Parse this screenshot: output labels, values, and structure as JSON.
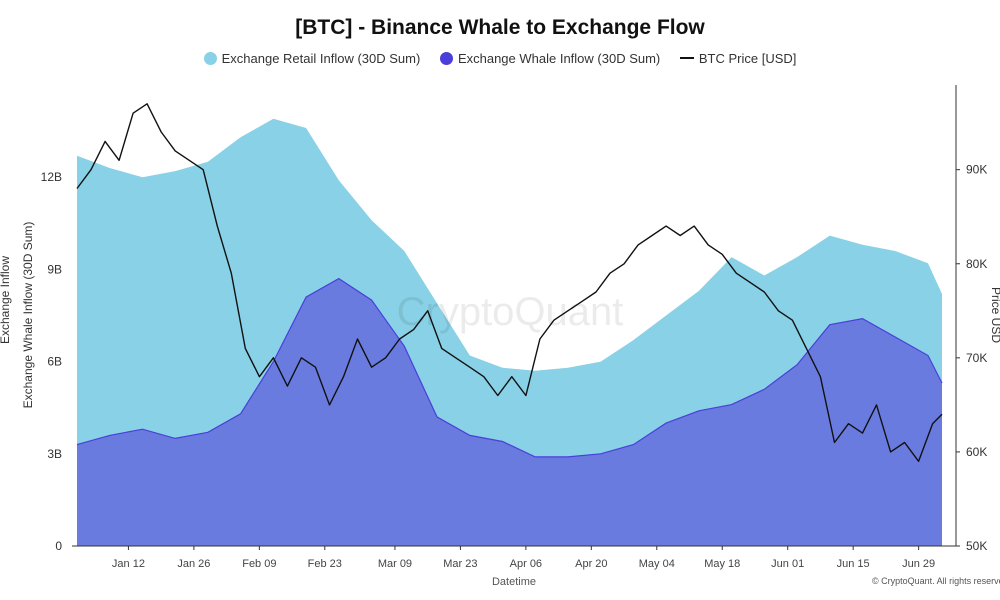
{
  "chart_data": {
    "type": "area",
    "title": "[BTC] - Binance Whale to Exchange Flow",
    "xlabel": "Datetime",
    "ylabel_left": "Exchange Whale Inflow (30D Sum)",
    "ylabel_left_outer": "Exchange Inflow",
    "ylabel_right": "Price USD",
    "watermark": "CryptoQuant",
    "copyright": "© CryptoQuant. All rights reserved",
    "x_ticks": [
      "Jan 12",
      "Jan 26",
      "Feb 09",
      "Feb 23",
      "Mar 09",
      "Mar 23",
      "Apr 06",
      "Apr 20",
      "May 04",
      "May 18",
      "Jun 01",
      "Jun 15",
      "Jun 29"
    ],
    "x_range": [
      "2024-01-01",
      "2024-07-04"
    ],
    "y_left_ticks": [
      "0",
      "3B",
      "6B",
      "9B",
      "12B"
    ],
    "y_left_range": [
      0,
      15
    ],
    "y_left_unit": "B",
    "y_right_ticks": [
      "50K",
      "60K",
      "70K",
      "80K",
      "90K"
    ],
    "y_right_range": [
      50,
      99
    ],
    "y_right_unit": "K USD",
    "legend_position": "top-center",
    "grid": false,
    "series": [
      {
        "name": "Exchange Retail Inflow (30D Sum)",
        "color": "#88d1e6",
        "axis": "left",
        "x": [
          "2024-01-01",
          "2024-01-08",
          "2024-01-15",
          "2024-01-22",
          "2024-01-29",
          "2024-02-05",
          "2024-02-12",
          "2024-02-19",
          "2024-02-26",
          "2024-03-04",
          "2024-03-11",
          "2024-03-18",
          "2024-03-25",
          "2024-04-01",
          "2024-04-08",
          "2024-04-15",
          "2024-04-22",
          "2024-04-29",
          "2024-05-06",
          "2024-05-13",
          "2024-05-20",
          "2024-05-27",
          "2024-06-03",
          "2024-06-10",
          "2024-06-17",
          "2024-06-24",
          "2024-07-01",
          "2024-07-04"
        ],
        "values": [
          12.7,
          12.3,
          12.0,
          12.2,
          12.5,
          13.3,
          13.9,
          13.6,
          11.9,
          10.6,
          9.6,
          7.9,
          6.2,
          5.8,
          5.7,
          5.8,
          6.0,
          6.7,
          7.5,
          8.3,
          9.4,
          8.8,
          9.4,
          10.1,
          9.8,
          9.6,
          9.2,
          8.2
        ]
      },
      {
        "name": "Exchange Whale Inflow (30D Sum)",
        "color": "#6a7bdf",
        "line_color": "#4a3fd9",
        "axis": "left",
        "x": [
          "2024-01-01",
          "2024-01-08",
          "2024-01-15",
          "2024-01-22",
          "2024-01-29",
          "2024-02-05",
          "2024-02-12",
          "2024-02-19",
          "2024-02-26",
          "2024-03-04",
          "2024-03-11",
          "2024-03-18",
          "2024-03-25",
          "2024-04-01",
          "2024-04-08",
          "2024-04-15",
          "2024-04-22",
          "2024-04-29",
          "2024-05-06",
          "2024-05-13",
          "2024-05-20",
          "2024-05-27",
          "2024-06-03",
          "2024-06-10",
          "2024-06-17",
          "2024-06-24",
          "2024-07-01",
          "2024-07-04"
        ],
        "values": [
          3.3,
          3.6,
          3.8,
          3.5,
          3.7,
          4.3,
          6.0,
          8.1,
          8.7,
          8.0,
          6.5,
          4.2,
          3.6,
          3.4,
          2.9,
          2.9,
          3.0,
          3.3,
          4.0,
          4.4,
          4.6,
          5.1,
          5.9,
          7.2,
          7.4,
          6.8,
          6.2,
          5.3
        ]
      },
      {
        "name": "BTC Price [USD]",
        "color": "#111111",
        "axis": "right",
        "x": [
          "2024-01-01",
          "2024-01-04",
          "2024-01-07",
          "2024-01-10",
          "2024-01-13",
          "2024-01-16",
          "2024-01-19",
          "2024-01-22",
          "2024-01-25",
          "2024-01-28",
          "2024-01-31",
          "2024-02-03",
          "2024-02-06",
          "2024-02-09",
          "2024-02-12",
          "2024-02-15",
          "2024-02-18",
          "2024-02-21",
          "2024-02-24",
          "2024-02-27",
          "2024-03-01",
          "2024-03-04",
          "2024-03-07",
          "2024-03-10",
          "2024-03-13",
          "2024-03-16",
          "2024-03-19",
          "2024-03-22",
          "2024-03-25",
          "2024-03-28",
          "2024-03-31",
          "2024-04-03",
          "2024-04-06",
          "2024-04-09",
          "2024-04-12",
          "2024-04-15",
          "2024-04-18",
          "2024-04-21",
          "2024-04-24",
          "2024-04-27",
          "2024-04-30",
          "2024-05-03",
          "2024-05-06",
          "2024-05-09",
          "2024-05-12",
          "2024-05-15",
          "2024-05-18",
          "2024-05-21",
          "2024-05-24",
          "2024-05-27",
          "2024-05-30",
          "2024-06-02",
          "2024-06-05",
          "2024-06-08",
          "2024-06-11",
          "2024-06-14",
          "2024-06-17",
          "2024-06-20",
          "2024-06-23",
          "2024-06-26",
          "2024-06-29",
          "2024-07-02",
          "2024-07-04"
        ],
        "values": [
          88,
          90,
          93,
          91,
          96,
          97,
          94,
          92,
          91,
          90,
          84,
          79,
          71,
          68,
          70,
          67,
          70,
          69,
          65,
          68,
          72,
          69,
          70,
          72,
          73,
          75,
          71,
          70,
          69,
          68,
          66,
          68,
          66,
          72,
          74,
          75,
          76,
          77,
          79,
          80,
          82,
          83,
          84,
          83,
          84,
          82,
          81,
          79,
          78,
          77,
          75,
          74,
          71,
          68,
          61,
          63,
          62,
          65,
          60,
          61,
          59,
          63,
          64
        ]
      }
    ]
  }
}
